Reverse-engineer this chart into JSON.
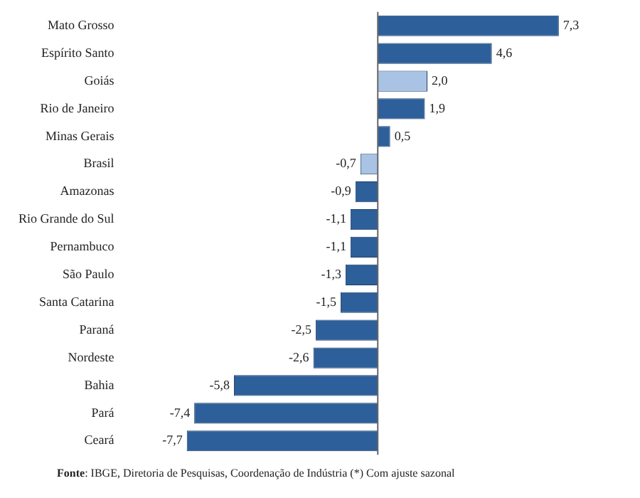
{
  "chart_data": {
    "type": "bar",
    "orientation": "horizontal",
    "categories": [
      "Mato Grosso",
      "Espírito Santo",
      "Goiás",
      "Rio de Janeiro",
      "Minas Gerais",
      "Brasil",
      "Amazonas",
      "Rio Grande do Sul",
      "Pernambuco",
      "São Paulo",
      "Santa Catarina",
      "Paraná",
      "Nordeste",
      "Bahia",
      "Pará",
      "Ceará"
    ],
    "values": [
      7.3,
      4.6,
      2.0,
      1.9,
      0.5,
      -0.7,
      -0.9,
      -1.1,
      -1.1,
      -1.3,
      -1.5,
      -2.5,
      -2.6,
      -5.8,
      -7.4,
      -7.7
    ],
    "colors": [
      "#2d5f9a",
      "#2d5f9a",
      "#a8c3e3",
      "#2d5f9a",
      "#2d5f9a",
      "#a8c3e3",
      "#2d5f9a",
      "#2d5f9a",
      "#2d5f9a",
      "#2d5f9a",
      "#2d5f9a",
      "#2d5f9a",
      "#2d5f9a",
      "#2d5f9a",
      "#2d5f9a",
      "#2d5f9a"
    ],
    "value_labels": [
      "7,3",
      "4,6",
      "2,0",
      "1,9",
      "0,5",
      "-0,7",
      "-0,9",
      "-1,1",
      "-1,1",
      "-1,3",
      "-1,5",
      "-2,5",
      "-2,6",
      "-5,8",
      "-7,4",
      "-7,7"
    ],
    "grid": false,
    "legend": false,
    "annotations": [
      "**Fonte**: IBGE, Diretoria de Pesquisas, Coordenação de Indústria (*) Com ajuste sazonal"
    ]
  }
}
